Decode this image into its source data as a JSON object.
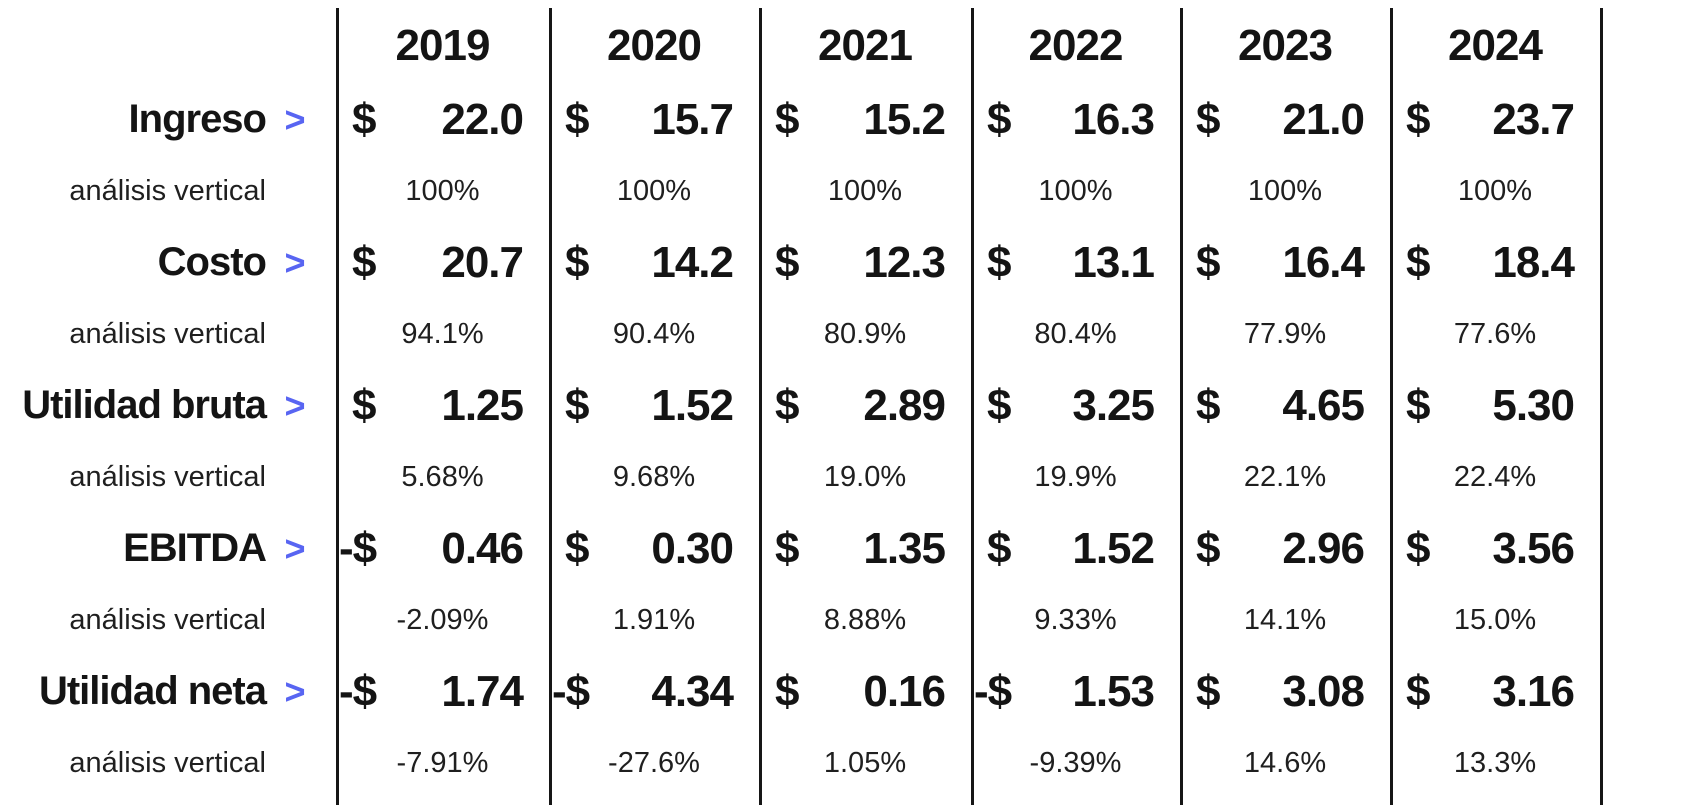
{
  "ui": {
    "analysis_label": "análisis vertical",
    "chevron_glyph": ">",
    "currency_symbol": "$",
    "negative_prefix": "-$",
    "colors": {
      "accent": "#5865f2",
      "text": "#141414",
      "line": "#161616",
      "background": "#ffffff"
    }
  },
  "chart_data": {
    "type": "table",
    "title": "",
    "categories": [
      "2019",
      "2020",
      "2021",
      "2022",
      "2023",
      "2024"
    ],
    "layout": {
      "grid": "vertical-column-dividers",
      "label_column": "left",
      "analysis_rows": "centered-percentages"
    },
    "series": [
      {
        "name": "Ingreso",
        "values": [
          22.0,
          15.7,
          15.2,
          16.3,
          21.0,
          23.7
        ],
        "formatted": [
          "22.0",
          "15.7",
          "15.2",
          "16.3",
          "21.0",
          "23.7"
        ],
        "vertical_analysis": [
          "100%",
          "100%",
          "100%",
          "100%",
          "100%",
          "100%"
        ]
      },
      {
        "name": "Costo",
        "values": [
          20.7,
          14.2,
          12.3,
          13.1,
          16.4,
          18.4
        ],
        "formatted": [
          "20.7",
          "14.2",
          "12.3",
          "13.1",
          "16.4",
          "18.4"
        ],
        "vertical_analysis": [
          "94.1%",
          "90.4%",
          "80.9%",
          "80.4%",
          "77.9%",
          "77.6%"
        ]
      },
      {
        "name": "Utilidad bruta",
        "values": [
          1.25,
          1.52,
          2.89,
          3.25,
          4.65,
          5.3
        ],
        "formatted": [
          "1.25",
          "1.52",
          "2.89",
          "3.25",
          "4.65",
          "5.30"
        ],
        "vertical_analysis": [
          "5.68%",
          "9.68%",
          "19.0%",
          "19.9%",
          "22.1%",
          "22.4%"
        ]
      },
      {
        "name": "EBITDA",
        "values": [
          -0.46,
          0.3,
          1.35,
          1.52,
          2.96,
          3.56
        ],
        "formatted": [
          "0.46",
          "0.30",
          "1.35",
          "1.52",
          "2.96",
          "3.56"
        ],
        "vertical_analysis": [
          "-2.09%",
          "1.91%",
          "8.88%",
          "9.33%",
          "14.1%",
          "15.0%"
        ]
      },
      {
        "name": "Utilidad neta",
        "values": [
          -1.74,
          -4.34,
          0.16,
          -1.53,
          3.08,
          3.16
        ],
        "formatted": [
          "1.74",
          "4.34",
          "0.16",
          "1.53",
          "3.08",
          "3.16"
        ],
        "vertical_analysis": [
          "-7.91%",
          "-27.6%",
          "1.05%",
          "-9.39%",
          "14.6%",
          "13.3%"
        ]
      }
    ]
  }
}
